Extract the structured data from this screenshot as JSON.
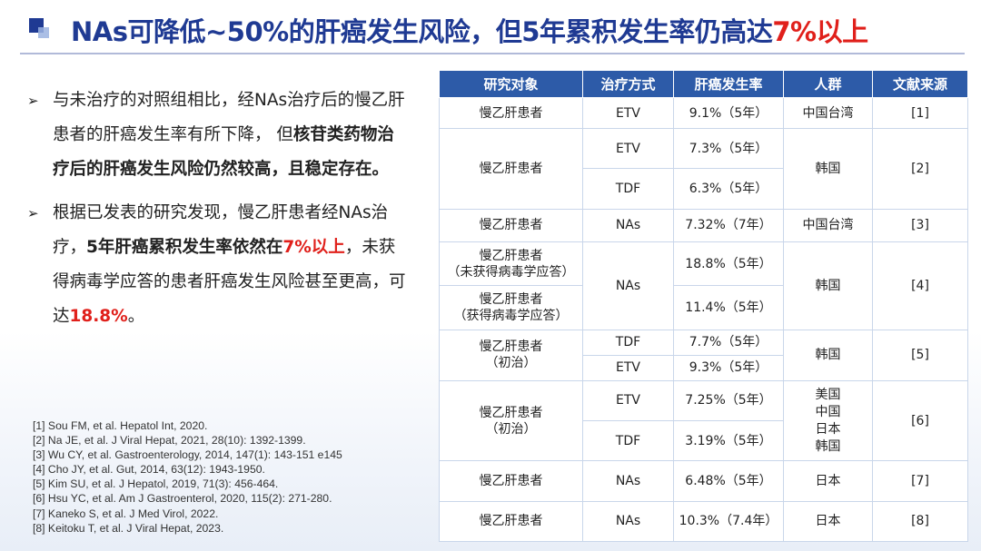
{
  "title": {
    "main": "NAs可降低~50%的肝癌发生风险，但5年累积发生率仍高达",
    "highlight": "7%以上"
  },
  "bullets": [
    {
      "parts": [
        {
          "t": "与未治疗的对照组相比，经NAs治疗后的慢乙肝患者的肝癌发生率有所下降，  但",
          "s": "n"
        },
        {
          "t": "核苷类药物治疗后的肝癌发生风险仍然较高，且稳定存在。",
          "s": "b"
        }
      ]
    },
    {
      "parts": [
        {
          "t": "根据已发表的研究发现，慢乙肝患者经NAs治疗，",
          "s": "n"
        },
        {
          "t": "5年肝癌累积发生率依然在",
          "s": "b"
        },
        {
          "t": "7%以上",
          "s": "r"
        },
        {
          "t": "，未获得病毒学应答的患者肝癌发生风险甚至更高，可达",
          "s": "n"
        },
        {
          "t": "18.8%",
          "s": "r"
        },
        {
          "t": "。",
          "s": "n"
        }
      ]
    }
  ],
  "references": [
    "[1] Sou FM, et al. Hepatol Int, 2020.",
    "[2] Na JE, et al. J Viral Hepat, 2021, 28(10): 1392-1399.",
    "[3] Wu CY, et al. Gastroenterology, 2014, 147(1): 143-151 e145",
    "[4] Cho JY, et al. Gut, 2014, 63(12): 1943-1950.",
    "[5] Kim SU, et al. J Hepatol, 2019, 71(3): 456-464.",
    "[6] Hsu YC, et al. Am J Gastroenterol, 2020, 115(2): 271-280.",
    "[7] Kaneko S, et al.  J Med Virol, 2022.",
    "[8] Keitoku T, et al. J Viral Hepat, 2023."
  ],
  "table": {
    "headers": [
      "研究对象",
      "治疗方式",
      "肝癌发生率",
      "人群",
      "文献来源"
    ],
    "cells": {
      "r1_subject": "慢乙肝患者",
      "r1_tx": "ETV",
      "r1_rate": "9.1%（5年）",
      "r1_pop": "中国台湾",
      "r1_ref": "[1]",
      "r2_subject": "慢乙肝患者",
      "r2a_tx": "ETV",
      "r2a_rate": "7.3%（5年）",
      "r2b_tx": "TDF",
      "r2b_rate": "6.3%（5年）",
      "r2_pop": "韩国",
      "r2_ref": "[2]",
      "r3_subject": "慢乙肝患者",
      "r3_tx": "NAs",
      "r3_rate": "7.32%（7年）",
      "r3_pop": "中国台湾",
      "r3_ref": "[3]",
      "r4a_subject": "慢乙肝患者",
      "r4a_note": "（未获得病毒学应答）",
      "r4b_subject": "慢乙肝患者",
      "r4b_note": "（获得病毒学应答）",
      "r4_tx": "NAs",
      "r4a_rate": "18.8%（5年）",
      "r4b_rate": "11.4%（5年）",
      "r4_pop": "韩国",
      "r4_ref": "[4]",
      "r5_subject": "慢乙肝患者",
      "r5_note": "（初治）",
      "r5a_tx": "TDF",
      "r5a_rate": "7.7%（5年）",
      "r5b_tx": "ETV",
      "r5b_rate": "9.3%（5年）",
      "r5_pop": "韩国",
      "r5_ref": "[5]",
      "r6_subject": "慢乙肝患者",
      "r6_note": "（初治）",
      "r6a_tx": "ETV",
      "r6a_rate": "7.25%（5年）",
      "r6b_tx": "TDF",
      "r6b_rate": "3.19%（5年）",
      "r6_pop1": "美国",
      "r6_pop2": "中国",
      "r6_pop3": "日本",
      "r6_pop4": "韩国",
      "r6_ref": "[6]",
      "r7_subject": "慢乙肝患者",
      "r7_tx": "NAs",
      "r7_rate": "6.48%（5年）",
      "r7_pop": "日本",
      "r7_ref": "[7]",
      "r8_subject": "慢乙肝患者",
      "r8_tx": "NAs",
      "r8_rate": "10.3%（7.4年）",
      "r8_pop": "日本",
      "r8_ref": "[8]"
    }
  },
  "colors": {
    "brand_blue": "#1f3a93",
    "header_blue": "#2d5ba8",
    "accent_red": "#e0201b"
  }
}
